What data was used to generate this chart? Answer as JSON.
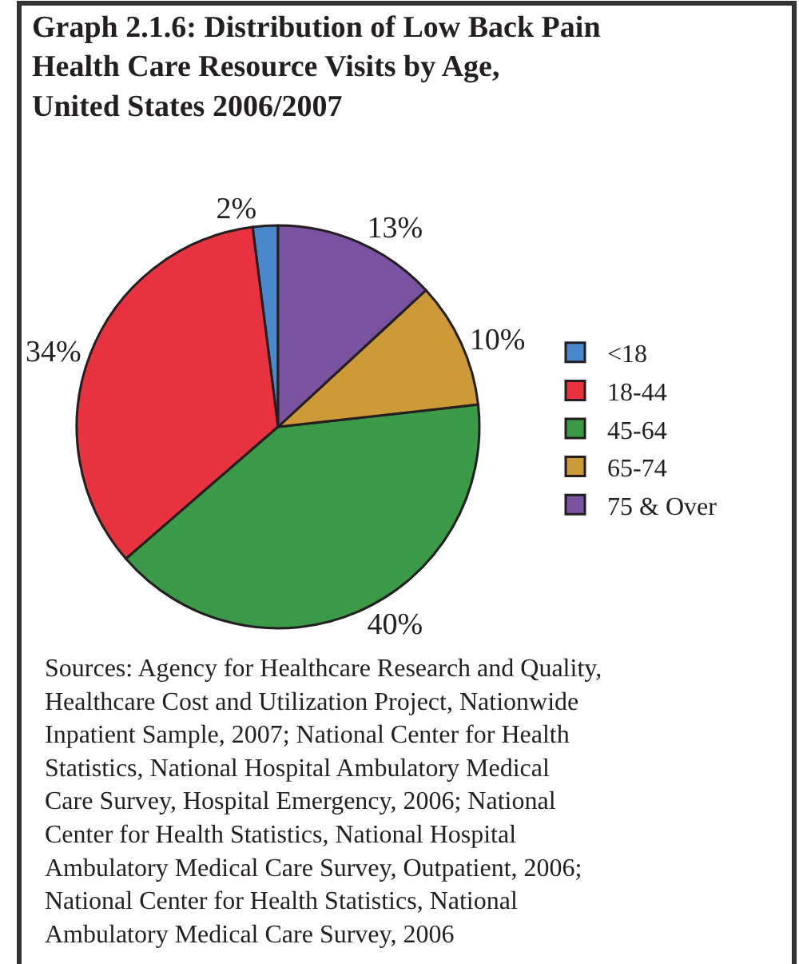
{
  "chart_data": {
    "type": "pie",
    "title": "Graph 2.1.6: Distribution of Low Back Pain\nHealth Care Resource Visits by Age,\nUnited States 2006/2007",
    "categories": [
      "<18",
      "18-44",
      "45-64",
      "65-74",
      "75 & Over"
    ],
    "values": [
      2,
      34,
      40,
      10,
      13
    ],
    "colors": [
      "#4a88cc",
      "#e9323f",
      "#3a9a48",
      "#cc9a36",
      "#7a52a0"
    ],
    "value_labels": [
      "2%",
      "34%",
      "40%",
      "10%",
      "13%"
    ],
    "legend": "right",
    "annotations": [
      "Sources: Agency for Healthcare Research and Quality,\nHealthcare Cost and Utilization Project, Nationwide\nInpatient Sample, 2007; National Center for Health\nStatistics, National Hospital Ambulatory Medical\nCare Survey, Hospital Emergency, 2006; National\nCenter for Health Statistics, National Hospital\nAmbulatory Medical Care Survey, Outpatient, 2006;\nNational Center for Health Statistics, National\nAmbulatory Medical Care Survey, 2006"
    ]
  }
}
